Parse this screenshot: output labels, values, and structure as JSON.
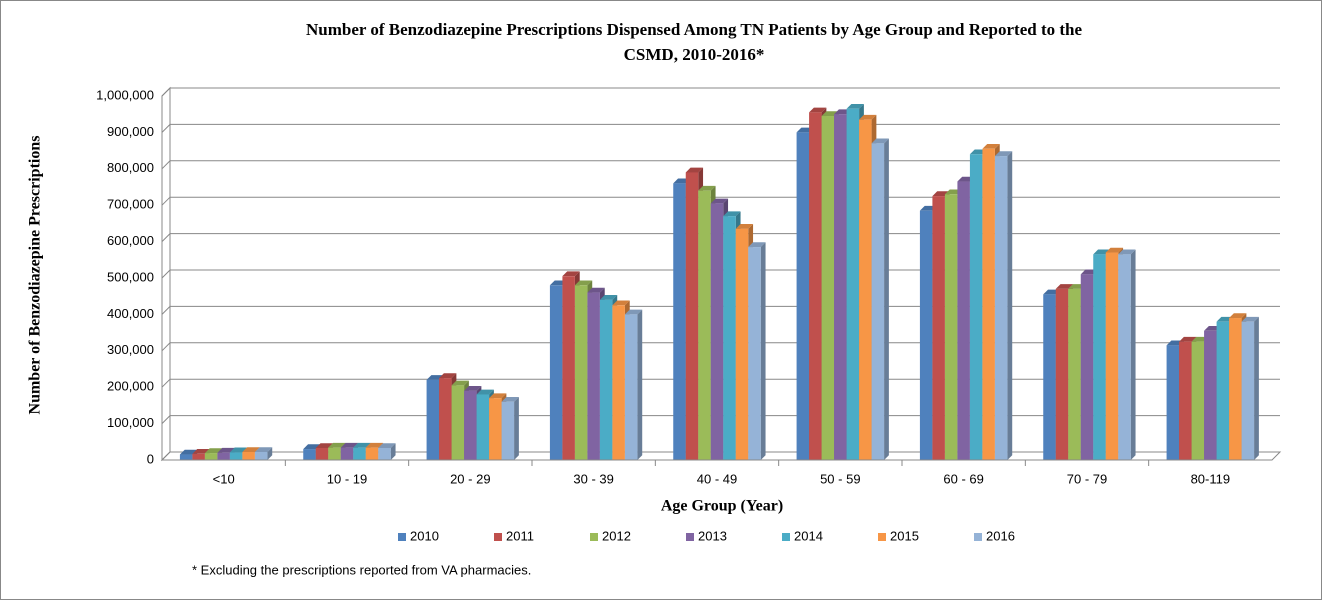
{
  "chart_data": {
    "type": "bar",
    "title": "Number of Benzodiazepine Prescriptions Dispensed Among TN Patients by Age Group and Reported to the",
    "subtitle": "CSMD, 2010-2016*",
    "x_label": "Age Group (Year)",
    "y_label": "Number of Benzodiazepine Prescriptions",
    "note": "* Excluding  the prescriptions reported from VA pharmacies.",
    "categories": [
      "<10",
      "10 - 19",
      "20 - 29",
      "30 - 39",
      "40 - 49",
      "50 - 59",
      "60 - 69",
      "70 - 79",
      "80-119"
    ],
    "series": [
      {
        "name": "2010",
        "color": "#4f81bd",
        "values": [
          15000,
          30000,
          220000,
          480000,
          760000,
          900000,
          685000,
          455000,
          315000
        ]
      },
      {
        "name": "2011",
        "color": "#c0504d",
        "values": [
          17000,
          33000,
          225000,
          505000,
          790000,
          955000,
          725000,
          470000,
          325000
        ]
      },
      {
        "name": "2012",
        "color": "#9bbb59",
        "values": [
          19000,
          34000,
          205000,
          480000,
          740000,
          945000,
          730000,
          470000,
          325000
        ]
      },
      {
        "name": "2013",
        "color": "#8064a2",
        "values": [
          20000,
          34000,
          190000,
          460000,
          705000,
          950000,
          765000,
          510000,
          355000
        ]
      },
      {
        "name": "2014",
        "color": "#4bacc6",
        "values": [
          21000,
          34000,
          180000,
          440000,
          670000,
          965000,
          840000,
          565000,
          380000
        ]
      },
      {
        "name": "2015",
        "color": "#f79646",
        "values": [
          22000,
          34000,
          170000,
          425000,
          635000,
          935000,
          855000,
          570000,
          390000
        ]
      },
      {
        "name": "2016",
        "color": "#95b3d7",
        "values": [
          22000,
          33000,
          160000,
          400000,
          585000,
          870000,
          835000,
          565000,
          380000
        ]
      }
    ],
    "ylim": [
      0,
      1000000
    ],
    "yticks": [
      0,
      {
        "value": 100000,
        "label": "100,000"
      },
      {
        "value": 200000,
        "label": "200,000"
      },
      {
        "value": 300000,
        "label": "300,000"
      },
      {
        "value": 400000,
        "label": "400,000"
      },
      {
        "value": 500000,
        "label": "500,000"
      },
      {
        "value": 600000,
        "label": "600,000"
      },
      {
        "value": 700000,
        "label": "700,000"
      },
      {
        "value": 800000,
        "label": "800,000"
      },
      {
        "value": 900000,
        "label": "900,000"
      },
      {
        "value": 1000000,
        "label": "1,000,000"
      }
    ],
    "grid": true
  }
}
